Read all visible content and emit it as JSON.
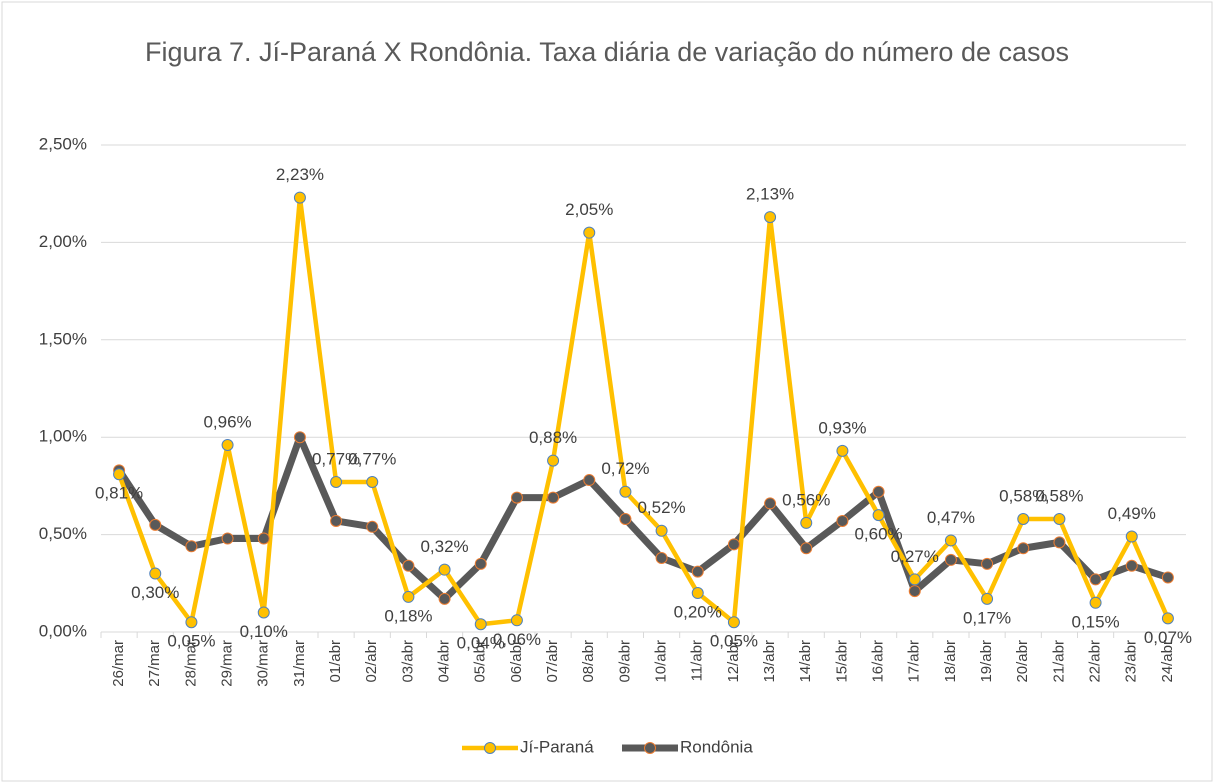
{
  "chart_data": {
    "type": "line",
    "title": "Figura 7. Jí-Paraná X Rondônia. Taxa diária de variação do número de casos",
    "categories": [
      "26/mar",
      "27/mar",
      "28/mar",
      "29/mar",
      "30/mar",
      "31/mar",
      "01/abr",
      "02/abr",
      "03/abr",
      "04/abr",
      "05/abr",
      "06/abr",
      "07/abr",
      "08/abr",
      "09/abr",
      "10/abr",
      "11/abr",
      "12/abr",
      "13/abr",
      "14/abr",
      "15/abr",
      "16/abr",
      "17/abr",
      "18/abr",
      "19/abr",
      "20/abr",
      "21/abr",
      "22/abr",
      "23/abr",
      "24/abr"
    ],
    "series": [
      {
        "name": "Jí-Paraná",
        "color": "#ffc000",
        "values": [
          0.81,
          0.3,
          0.05,
          0.96,
          0.1,
          2.23,
          0.77,
          0.77,
          0.18,
          0.32,
          0.04,
          0.06,
          0.88,
          2.05,
          0.72,
          0.52,
          0.2,
          0.05,
          2.13,
          0.56,
          0.93,
          0.6,
          0.27,
          0.47,
          0.17,
          0.58,
          0.58,
          0.15,
          0.49,
          0.07
        ],
        "value_labels": [
          "0,81%",
          "0,30%",
          "0,05%",
          "0,96%",
          "0,10%",
          "2,23%",
          "0,77%",
          "0,77%",
          "0,18%",
          "0,32%",
          "0,04%",
          "0,06%",
          "0,88%",
          "2,05%",
          "0,72%",
          "0,52%",
          "0,20%",
          "0,05%",
          "2,13%",
          "0,56%",
          "0,93%",
          "0,60%",
          "0,27%",
          "0,47%",
          "0,17%",
          "0,58%",
          "0,58%",
          "0,15%",
          "0,49%",
          "0,07%"
        ]
      },
      {
        "name": "Rondônia",
        "color": "#595959",
        "values": [
          0.83,
          0.55,
          0.44,
          0.48,
          0.48,
          1.0,
          0.57,
          0.54,
          0.34,
          0.17,
          0.35,
          0.69,
          0.69,
          0.78,
          0.58,
          0.38,
          0.31,
          0.45,
          0.66,
          0.43,
          0.57,
          0.72,
          0.21,
          0.37,
          0.35,
          0.43,
          0.46,
          0.27,
          0.34,
          0.28
        ]
      }
    ],
    "ylim": [
      0,
      2.5
    ],
    "yticks": [
      {
        "value": 0,
        "label": "0,00%"
      },
      {
        "value": 0.5,
        "label": "0,50%"
      },
      {
        "value": 1,
        "label": "1,00%"
      },
      {
        "value": 1.5,
        "label": "1,50%"
      },
      {
        "value": 2,
        "label": "2,00%"
      },
      {
        "value": 2.5,
        "label": "2,50%"
      }
    ],
    "grid": true,
    "legend": "bottom"
  }
}
